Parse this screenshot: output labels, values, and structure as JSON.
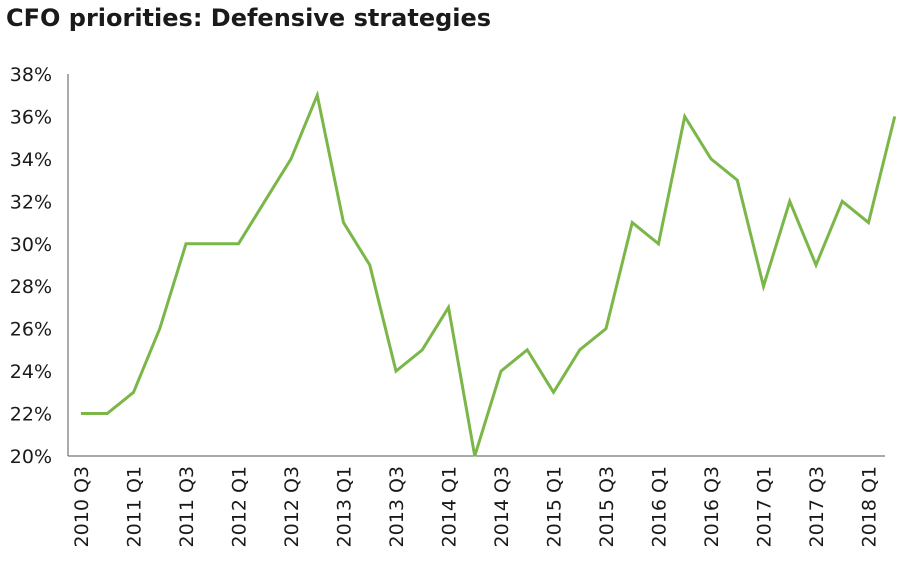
{
  "chart_data": {
    "type": "line",
    "title": "CFO priorities: Defensive strategies",
    "xlabel": "",
    "ylabel": "",
    "ylim": [
      20,
      38
    ],
    "yticks": [
      "20%",
      "22%",
      "24%",
      "26%",
      "28%",
      "30%",
      "32%",
      "34%",
      "36%",
      "38%"
    ],
    "grid": false,
    "legend": "none",
    "line_color": "#7ab648",
    "x": [
      "2010 Q3",
      "2010 Q4",
      "2011 Q1",
      "2011 Q2",
      "2011 Q3",
      "2011 Q4",
      "2012 Q1",
      "2012 Q2",
      "2012 Q3",
      "2012 Q4",
      "2013 Q1",
      "2013 Q2",
      "2013 Q3",
      "2013 Q4",
      "2014 Q1",
      "2014 Q2",
      "2014 Q3",
      "2014 Q4",
      "2015 Q1",
      "2015 Q2",
      "2015 Q3",
      "2015 Q4",
      "2016 Q1",
      "2016 Q2",
      "2016 Q3",
      "2016 Q4",
      "2017 Q1",
      "2017 Q2",
      "2017 Q3",
      "2017 Q4",
      "2018 Q1",
      "2018 Q2"
    ],
    "xtick_labels": [
      "2010 Q3",
      "2011 Q1",
      "2011 Q3",
      "2012 Q1",
      "2012 Q3",
      "2013 Q1",
      "2013 Q3",
      "2014 Q1",
      "2014 Q3",
      "2015 Q1",
      "2015 Q3",
      "2016 Q1",
      "2016 Q3",
      "2017 Q1",
      "2017 Q3",
      "2018 Q1"
    ],
    "series": [
      {
        "values": [
          22,
          22,
          23,
          26,
          30,
          30,
          30,
          32,
          34,
          37,
          31,
          29,
          24,
          25,
          27,
          20,
          24,
          25,
          23,
          25,
          26,
          31,
          30,
          36,
          34,
          33,
          28,
          32,
          29,
          32,
          31,
          36
        ]
      }
    ]
  }
}
